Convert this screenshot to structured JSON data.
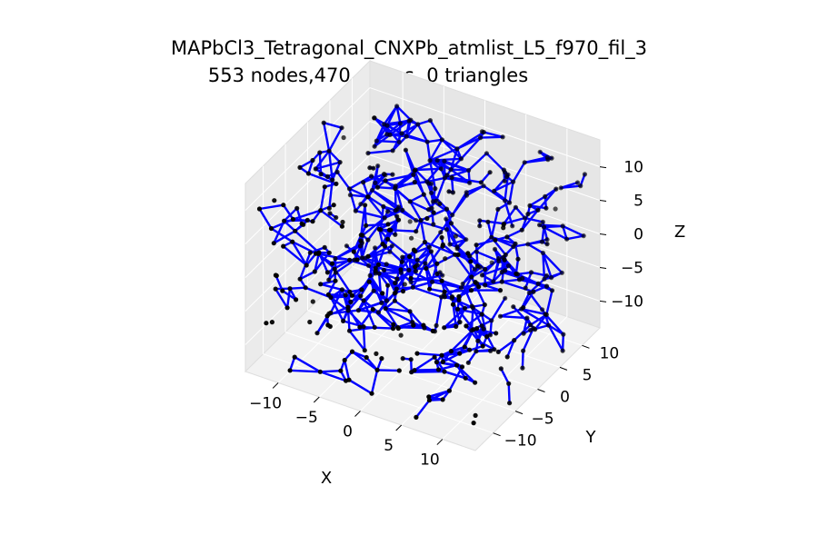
{
  "chart_data": {
    "type": "3d-network",
    "title": "MAPbCl3_Tetragonal_CNXPb_atmlist_L5_f970_fil_3",
    "subtitle": "553 nodes,470 edges, 0 triangles",
    "xlabel": "X",
    "ylabel": "Y",
    "zlabel": "Z",
    "x_ticks": [
      "−10",
      "−5",
      "0",
      "5",
      "10"
    ],
    "y_ticks": [
      "−10",
      "−5",
      "0",
      "5",
      "10"
    ],
    "z_ticks": [
      "−10",
      "−5",
      "0",
      "5",
      "10"
    ],
    "xlim": [
      -14,
      14
    ],
    "ylim": [
      -14,
      14
    ],
    "zlim": [
      -14,
      14
    ],
    "grid": true,
    "node_color": "#000000",
    "edge_color": "#0000ff",
    "nodes": 553,
    "edges": 470,
    "triangles": 0
  }
}
